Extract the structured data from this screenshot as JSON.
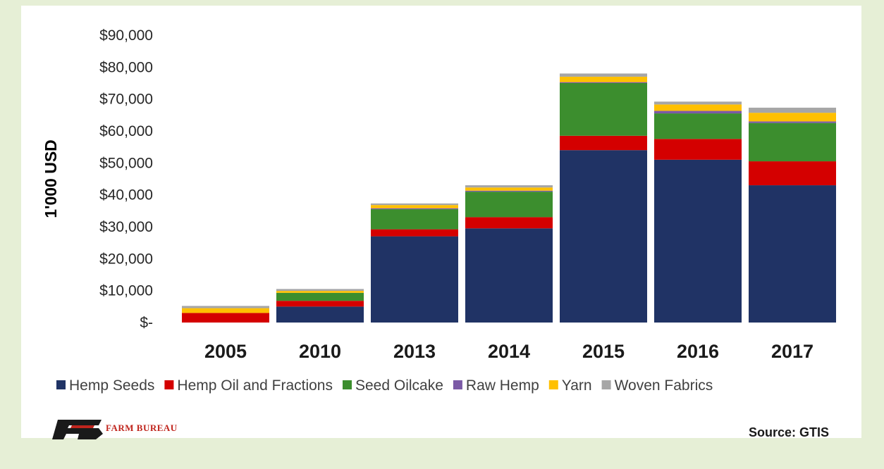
{
  "chart_data": {
    "type": "bar",
    "stacked": true,
    "ylabel": "1'000 USD",
    "ylim": [
      0,
      90000
    ],
    "y_ticks": [
      0,
      10000,
      20000,
      30000,
      40000,
      50000,
      60000,
      70000,
      80000,
      90000
    ],
    "y_tick_labels": [
      "$-",
      "$10,000",
      "$20,000",
      "$30,000",
      "$40,000",
      "$50,000",
      "$60,000",
      "$70,000",
      "$80,000",
      "$90,000"
    ],
    "categories": [
      "2005",
      "2010",
      "2013",
      "2014",
      "2015",
      "2016",
      "2017"
    ],
    "legend_position": "bottom",
    "grid": false,
    "series": [
      {
        "name": "Hemp Seeds",
        "color": "#203365",
        "values": [
          0,
          5000,
          27000,
          29500,
          54000,
          51000,
          43000
        ]
      },
      {
        "name": "Hemp Oil and Fractions",
        "color": "#d40000",
        "values": [
          3000,
          1800,
          2200,
          3500,
          4500,
          6500,
          7500
        ]
      },
      {
        "name": "Seed Oilcake",
        "color": "#3c8e2e",
        "values": [
          0,
          2500,
          6300,
          8000,
          16500,
          8000,
          12000
        ]
      },
      {
        "name": "Raw Hemp",
        "color": "#7b5aa6",
        "values": [
          0,
          0,
          300,
          300,
          300,
          800,
          500
        ]
      },
      {
        "name": "Yarn",
        "color": "#ffc000",
        "values": [
          1500,
          600,
          1000,
          1000,
          1700,
          2000,
          2700
        ]
      },
      {
        "name": "Woven Fabrics",
        "color": "#a6a6a6",
        "values": [
          700,
          600,
          500,
          700,
          1000,
          900,
          1600
        ]
      }
    ]
  },
  "footer": {
    "brand": "FARM BUREAU",
    "brand_mark": "FB",
    "source": "Source: GTIS"
  }
}
